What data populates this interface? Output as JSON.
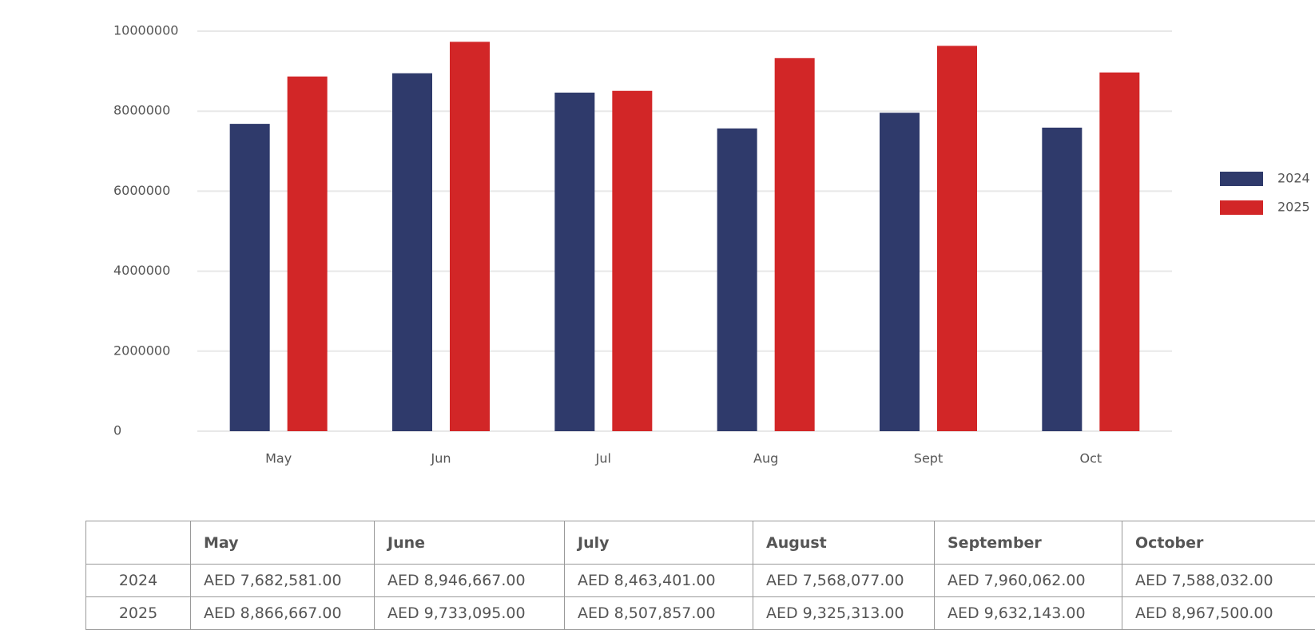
{
  "chart_data": {
    "type": "bar",
    "categories": [
      "May",
      "Jun",
      "Jul",
      "Aug",
      "Sept",
      "Oct"
    ],
    "series": [
      {
        "name": "2024",
        "color": "#2f3a6b",
        "values": [
          7682581,
          8946667,
          8463401,
          7568077,
          7960062,
          7588032
        ]
      },
      {
        "name": "2025",
        "color": "#d22627",
        "values": [
          8866667,
          9733095,
          8507857,
          9325313,
          9632143,
          8967500
        ]
      }
    ],
    "ylim": [
      0,
      10000000
    ],
    "yticks": [
      0,
      2000000,
      4000000,
      6000000,
      8000000,
      10000000
    ],
    "grid": true,
    "legend": "right"
  },
  "table": {
    "columns": [
      "May",
      "June",
      "July",
      "August",
      "September",
      "October"
    ],
    "rows": [
      {
        "label": "2024",
        "cells": [
          "AED 7,682,581.00",
          "AED 8,946,667.00",
          "AED 8,463,401.00",
          "AED 7,568,077.00",
          "AED 7,960,062.00",
          "AED 7,588,032.00"
        ]
      },
      {
        "label": "2025",
        "cells": [
          "AED 8,866,667.00",
          "AED 9,733,095.00",
          "AED 8,507,857.00",
          "AED 9,325,313.00",
          "AED 9,632,143.00",
          "AED 8,967,500.00"
        ]
      }
    ]
  }
}
